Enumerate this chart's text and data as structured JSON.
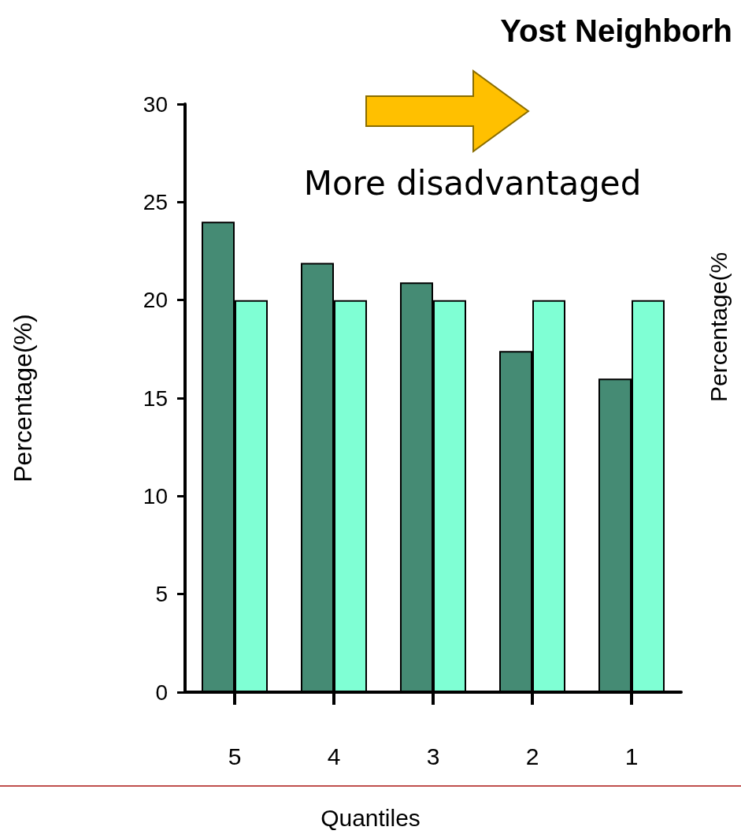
{
  "chart_data": {
    "type": "bar",
    "title": "Yost Neighborh",
    "xlabel": "Quantiles",
    "ylabel": "Percentage(%)",
    "annotations": [
      "More disadvantaged",
      "Percentage(%"
    ],
    "categories": [
      "5",
      "4",
      "3",
      "2",
      "1"
    ],
    "series": [
      {
        "color": "#458b74",
        "values": [
          24,
          21.9,
          20.9,
          17.4,
          16
        ]
      },
      {
        "color": "#7fffd4",
        "values": [
          20,
          20,
          20,
          20,
          20
        ]
      }
    ],
    "ylim": [
      0,
      30
    ],
    "yticks": [
      0,
      5,
      10,
      15,
      20,
      25,
      30
    ],
    "grid": false
  }
}
